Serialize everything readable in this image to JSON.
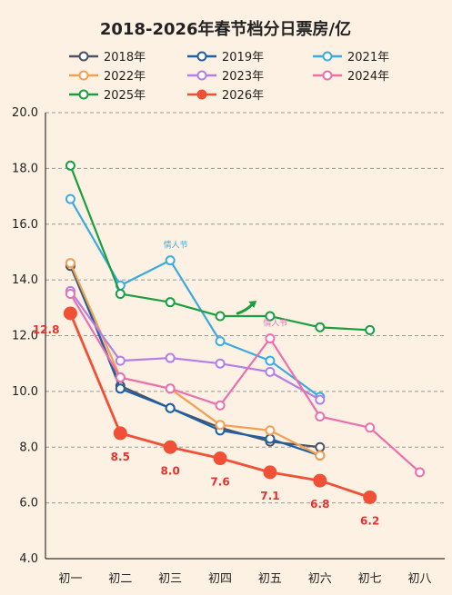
{
  "chart_data": {
    "type": "line",
    "title": "2018-2026年春节档分日票房/亿",
    "categories": [
      "初一",
      "初二",
      "初三",
      "初四",
      "初五",
      "初六",
      "初七",
      "初八"
    ],
    "ylim": [
      4.0,
      20.0
    ],
    "yticks": [
      "4.0",
      "6.0",
      "8.0",
      "10.0",
      "12.0",
      "14.0",
      "16.0",
      "18.0",
      "20.0"
    ],
    "grid": true,
    "legend_position": "top",
    "series": [
      {
        "name": "2018年",
        "color": "#4a5263",
        "values": [
          14.5,
          10.2,
          9.4,
          8.7,
          8.2,
          8.0,
          null,
          null
        ]
      },
      {
        "name": "2019年",
        "color": "#1f5fa6",
        "values": [
          14.6,
          10.1,
          9.4,
          8.6,
          8.3,
          7.7,
          null,
          null
        ]
      },
      {
        "name": "2021年",
        "color": "#3aabe0",
        "values": [
          16.9,
          13.8,
          14.7,
          11.8,
          11.1,
          9.8,
          null,
          null
        ]
      },
      {
        "name": "2022年",
        "color": "#f5a04e",
        "values": [
          14.6,
          10.5,
          10.1,
          8.8,
          8.6,
          7.7,
          null,
          null
        ]
      },
      {
        "name": "2023年",
        "color": "#b57de8",
        "values": [
          13.6,
          11.1,
          11.2,
          11.0,
          10.7,
          9.7,
          null,
          null
        ]
      },
      {
        "name": "2024年",
        "color": "#ec6fb0",
        "values": [
          13.5,
          10.5,
          10.1,
          9.5,
          11.9,
          9.1,
          8.7,
          7.1
        ]
      },
      {
        "name": "2025年",
        "color": "#1a9e3f",
        "values": [
          18.1,
          13.5,
          13.2,
          12.7,
          12.7,
          12.3,
          12.2,
          null
        ]
      },
      {
        "name": "2026年",
        "color": "#f05035",
        "filled": true,
        "values": [
          12.8,
          8.5,
          8.0,
          7.6,
          7.1,
          6.8,
          6.2,
          null
        ]
      }
    ],
    "data_labels": [
      {
        "series": "2026年",
        "index": 0,
        "text": "12.8",
        "pos": "left"
      },
      {
        "series": "2026年",
        "index": 1,
        "text": "8.5",
        "pos": "below"
      },
      {
        "series": "2026年",
        "index": 2,
        "text": "8.0",
        "pos": "below"
      },
      {
        "series": "2026年",
        "index": 3,
        "text": "7.6",
        "pos": "below"
      },
      {
        "series": "2026年",
        "index": 4,
        "text": "7.1",
        "pos": "below"
      },
      {
        "series": "2026年",
        "index": 5,
        "text": "6.8",
        "pos": "below"
      },
      {
        "series": "2026年",
        "index": 6,
        "text": "6.2",
        "pos": "below"
      }
    ],
    "annotations": [
      {
        "text": "情人节",
        "series": "2021年",
        "index": 2,
        "color": "#3aabe0"
      },
      {
        "text": "情人节",
        "series": "2024年",
        "index": 4,
        "color": "#ec6fb0"
      }
    ],
    "trend_arrow_color": "#1a9e3f"
  }
}
